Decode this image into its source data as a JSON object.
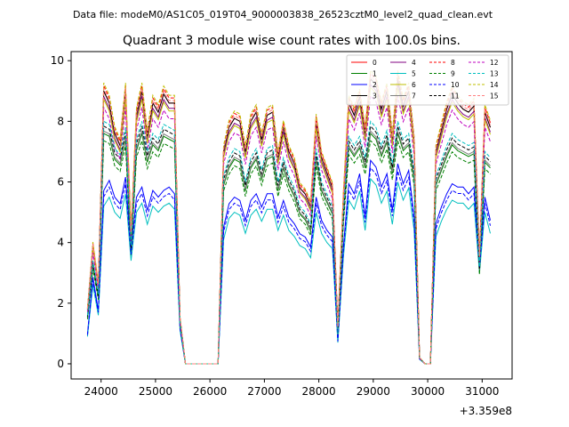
{
  "header": {
    "data_file": "Data file: modeM0/AS1C05_019T04_9000003838_26523cztM0_level2_quad_clean.evt"
  },
  "chart_data": {
    "type": "line",
    "title": "Quadrant 3 module wise count rates with 100.0s bins.",
    "xlabel": "",
    "ylabel": "",
    "x_offset_label": "+3.359e8",
    "xlim": [
      23450,
      31550
    ],
    "ylim": [
      -0.5,
      10.3
    ],
    "xticks": [
      24000,
      25000,
      26000,
      27000,
      28000,
      29000,
      30000,
      31000
    ],
    "xtick_labels": [
      "24000",
      "25000",
      "26000",
      "27000",
      "28000",
      "29000",
      "30000",
      "31000"
    ],
    "yticks": [
      0,
      2,
      4,
      6,
      8,
      10
    ],
    "ytick_labels": [
      "0",
      "2",
      "4",
      "6",
      "8",
      "10"
    ],
    "grid": false,
    "legend_placement": "top-right",
    "x": [
      23750,
      23850,
      23950,
      24050,
      24150,
      24250,
      24350,
      24450,
      24550,
      24650,
      24750,
      24850,
      24950,
      25050,
      25150,
      25250,
      25350,
      25450,
      25550,
      25650,
      25750,
      25850,
      25950,
      26050,
      26150,
      26250,
      26350,
      26450,
      26550,
      26650,
      26750,
      26850,
      26950,
      27050,
      27150,
      27250,
      27350,
      27450,
      27550,
      27650,
      27750,
      27850,
      27950,
      28050,
      28150,
      28250,
      28350,
      28450,
      28550,
      28650,
      28750,
      28850,
      28950,
      29050,
      29150,
      29250,
      29350,
      29450,
      29550,
      29650,
      29750,
      29850,
      29950,
      30050,
      30150,
      30250,
      30350,
      30450,
      30550,
      30650,
      30750,
      30850,
      30950,
      31050,
      31150
    ],
    "series": [
      {
        "name": "0",
        "color": "#ff0000",
        "dash": false
      },
      {
        "name": "1",
        "color": "#008000",
        "dash": false
      },
      {
        "name": "2",
        "color": "#0000ff",
        "dash": false
      },
      {
        "name": "3",
        "color": "#000000",
        "dash": false
      },
      {
        "name": "4",
        "color": "#800080",
        "dash": false
      },
      {
        "name": "5",
        "color": "#00bfbf",
        "dash": false
      },
      {
        "name": "6",
        "color": "#bfbf00",
        "dash": false
      },
      {
        "name": "7",
        "color": "#808080",
        "dash": false
      },
      {
        "name": "8",
        "color": "#ff0000",
        "dash": true
      },
      {
        "name": "9",
        "color": "#008000",
        "dash": true
      },
      {
        "name": "10",
        "color": "#0000ff",
        "dash": true
      },
      {
        "name": "11",
        "color": "#000000",
        "dash": true
      },
      {
        "name": "12",
        "color": "#bf00bf",
        "dash": true
      },
      {
        "name": "13",
        "color": "#00bfbf",
        "dash": true
      },
      {
        "name": "14",
        "color": "#bfbf00",
        "dash": true
      },
      {
        "name": "15",
        "color": "#ff8080",
        "dash": true
      }
    ],
    "group_profiles": {
      "high": [
        1.8,
        3.9,
        2.6,
        9.0,
        8.6,
        7.6,
        7.2,
        9.0,
        4.3,
        8.2,
        9.0,
        7.5,
        8.6,
        8.3,
        8.9,
        8.6,
        8.6,
        1.5,
        0,
        0,
        0,
        0,
        0,
        0,
        0,
        7.0,
        7.8,
        8.1,
        8.0,
        7.0,
        8.0,
        8.3,
        7.4,
        8.2,
        8.3,
        6.8,
        7.8,
        7.0,
        6.6,
        5.8,
        5.6,
        5.2,
        8.0,
        6.8,
        6.3,
        5.8,
        1.2,
        5.5,
        8.6,
        8.2,
        8.8,
        7.6,
        9.4,
        9.2,
        8.4,
        9.0,
        7.4,
        9.4,
        8.5,
        9.0,
        7.3,
        0.2,
        0,
        0,
        7.0,
        7.7,
        8.4,
        8.9,
        8.6,
        8.4,
        8.3,
        8.5,
        3.5,
        8.3,
        7.8
      ],
      "mid": [
        1.6,
        3.4,
        2.3,
        8.0,
        7.9,
        7.1,
        6.9,
        7.8,
        3.9,
        7.4,
        8.0,
        7.0,
        7.6,
        7.4,
        7.9,
        7.8,
        7.7,
        1.4,
        0,
        0,
        0,
        0,
        0,
        0,
        0,
        6.2,
        6.8,
        7.1,
        7.0,
        6.0,
        6.8,
        7.1,
        6.4,
        7.1,
        7.2,
        6.0,
        6.8,
        6.2,
        5.8,
        5.2,
        5.0,
        4.6,
        7.1,
        6.0,
        5.6,
        5.2,
        1.0,
        5.0,
        7.5,
        7.2,
        7.5,
        6.8,
        8.0,
        7.8,
        7.2,
        7.7,
        6.6,
        8.0,
        7.4,
        7.6,
        6.4,
        0.2,
        0,
        0,
        6.2,
        6.7,
        7.2,
        7.6,
        7.4,
        7.3,
        7.2,
        7.3,
        3.2,
        7.0,
        6.8
      ],
      "low": [
        0.9,
        2.6,
        1.6,
        5.2,
        5.5,
        5.0,
        4.8,
        5.6,
        3.4,
        5.0,
        5.3,
        4.6,
        5.2,
        5.0,
        5.2,
        5.3,
        5.1,
        1.1,
        0,
        0,
        0,
        0,
        0,
        0,
        0,
        4.1,
        4.8,
        5.0,
        4.9,
        4.3,
        4.9,
        5.1,
        4.7,
        5.1,
        5.1,
        4.4,
        4.9,
        4.4,
        4.2,
        3.9,
        3.8,
        3.5,
        5.0,
        4.3,
        4.0,
        3.8,
        0.7,
        3.5,
        5.4,
        5.1,
        5.7,
        4.4,
        6.1,
        5.9,
        5.3,
        5.7,
        4.6,
        6.0,
        5.4,
        5.8,
        4.4,
        0.15,
        0,
        0,
        4.2,
        4.7,
        5.1,
        5.4,
        5.3,
        5.3,
        5.1,
        5.3,
        3.0,
        5.0,
        4.3
      ]
    },
    "series_group": [
      "high",
      "mid",
      "low",
      "high",
      "high",
      "low",
      "high",
      "mid",
      "high",
      "mid",
      "low",
      "mid",
      "high",
      "mid",
      "high",
      "high"
    ],
    "series_scale": [
      1.0,
      0.95,
      1.1,
      1.0,
      0.98,
      1.0,
      0.97,
      0.96,
      1.02,
      0.92,
      1.06,
      0.98,
      0.94,
      1.0,
      1.03,
      1.01
    ]
  }
}
